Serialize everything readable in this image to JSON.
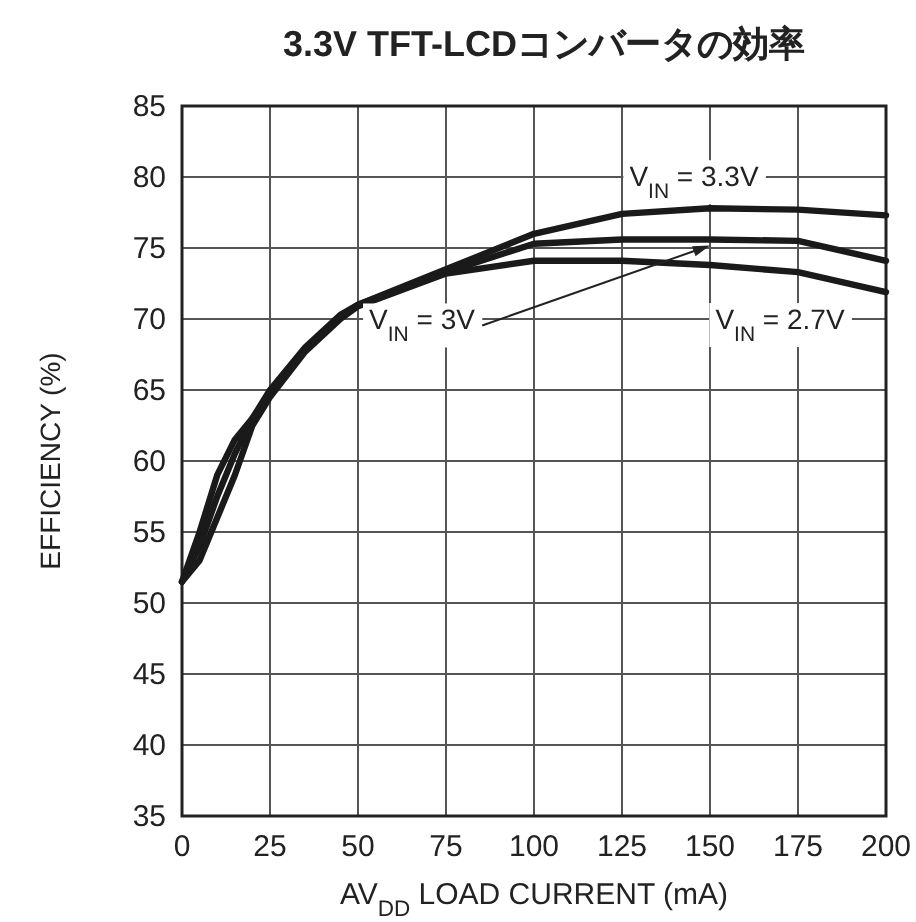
{
  "chart_data": {
    "type": "line",
    "title": "3.3V TFT-LCDコンバータの効率",
    "xlabel": "AV$_{DD}$ LOAD CURRENT (mA)",
    "ylabel": "EFFICIENCY (%)",
    "xlim": [
      0,
      200
    ],
    "xticks": [
      0,
      25,
      50,
      75,
      100,
      125,
      150,
      175,
      200
    ],
    "ylim": [
      35,
      85
    ],
    "yticks": [
      35,
      40,
      45,
      50,
      55,
      60,
      65,
      70,
      75,
      80,
      85
    ],
    "grid": true,
    "marker": "none",
    "line_style": "solid",
    "series": [
      {
        "name": "V$_{IN}$ = 3.3V",
        "color": "#1a1a1a",
        "x": [
          0,
          5,
          10,
          15,
          20,
          25,
          35,
          45,
          50,
          75,
          100,
          125,
          150,
          175,
          200
        ],
        "values": [
          51.5,
          55,
          59,
          61.5,
          63,
          65,
          68,
          70.3,
          71,
          73.5,
          76,
          77.4,
          77.8,
          77.7,
          77.3
        ]
      },
      {
        "name": "V$_{IN}$ = 3V",
        "color": "#1a1a1a",
        "x": [
          0,
          5,
          10,
          15,
          20,
          25,
          35,
          45,
          50,
          75,
          100,
          125,
          150,
          175,
          200
        ],
        "values": [
          51.5,
          54,
          57.5,
          60.5,
          63,
          64.8,
          67.8,
          70.2,
          71,
          73.3,
          75.3,
          75.6,
          75.6,
          75.5,
          74.1
        ]
      },
      {
        "name": "V$_{IN}$ = 2.7V",
        "color": "#1a1a1a",
        "x": [
          0,
          5,
          10,
          15,
          20,
          25,
          35,
          45,
          50,
          75,
          100,
          125,
          150,
          175,
          200
        ],
        "values": [
          51.5,
          53,
          56,
          59,
          62.5,
          64.5,
          67.7,
          70,
          70.9,
          73.2,
          74.1,
          74.1,
          73.8,
          73.3,
          71.9
        ]
      }
    ]
  }
}
